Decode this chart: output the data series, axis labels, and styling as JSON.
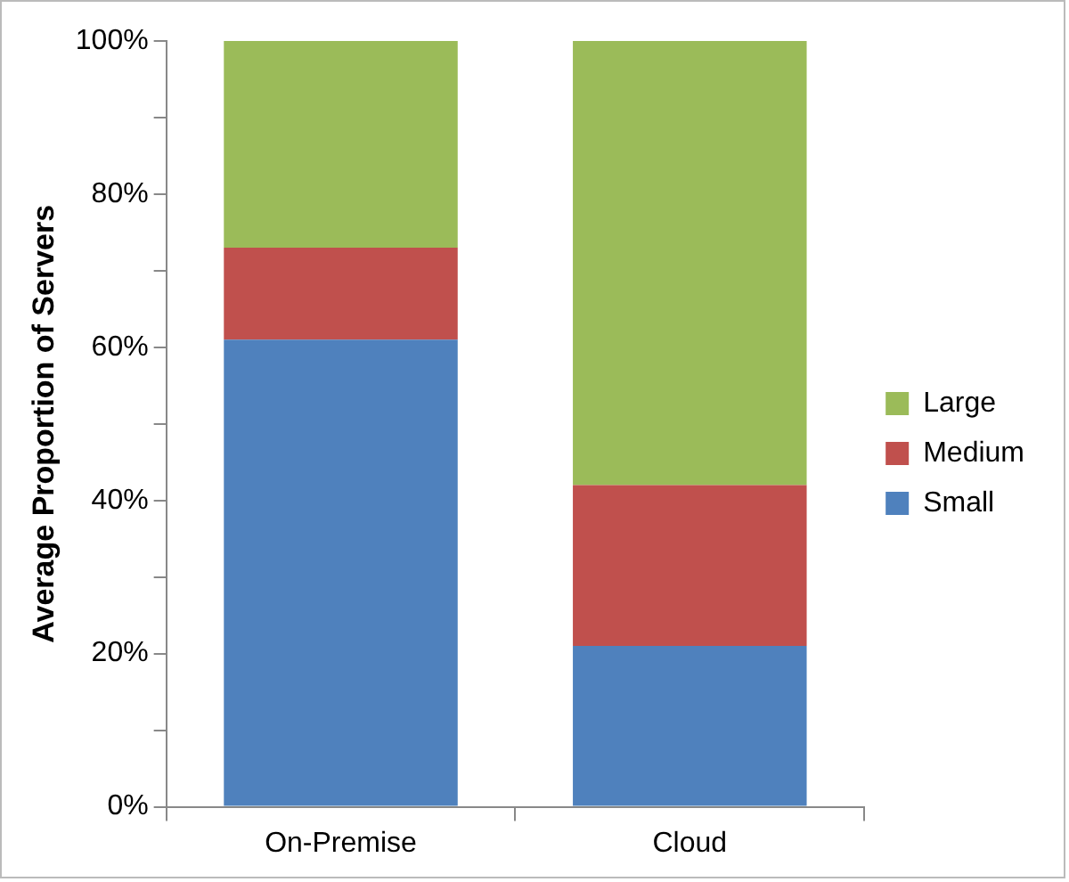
{
  "chart_data": {
    "type": "bar",
    "stacked": true,
    "ylabel": "Average Proportion of Servers",
    "categories": [
      "On-Premise",
      "Cloud"
    ],
    "series": [
      {
        "name": "Small",
        "color": "#4f81bd",
        "values": [
          61,
          21
        ]
      },
      {
        "name": "Medium",
        "color": "#c0504d",
        "values": [
          12,
          21
        ]
      },
      {
        "name": "Large",
        "color": "#9bbb59",
        "values": [
          27,
          58
        ]
      }
    ],
    "ylim": [
      0,
      100
    ],
    "yticks": [
      {
        "value": 0,
        "label": "0%"
      },
      {
        "value": 10,
        "label": null
      },
      {
        "value": 20,
        "label": "20%"
      },
      {
        "value": 30,
        "label": null
      },
      {
        "value": 40,
        "label": "40%"
      },
      {
        "value": 50,
        "label": null
      },
      {
        "value": 60,
        "label": "60%"
      },
      {
        "value": 70,
        "label": null
      },
      {
        "value": 80,
        "label": "80%"
      },
      {
        "value": 90,
        "label": null
      },
      {
        "value": 100,
        "label": "100%"
      }
    ],
    "grid": false,
    "legend": "right"
  }
}
